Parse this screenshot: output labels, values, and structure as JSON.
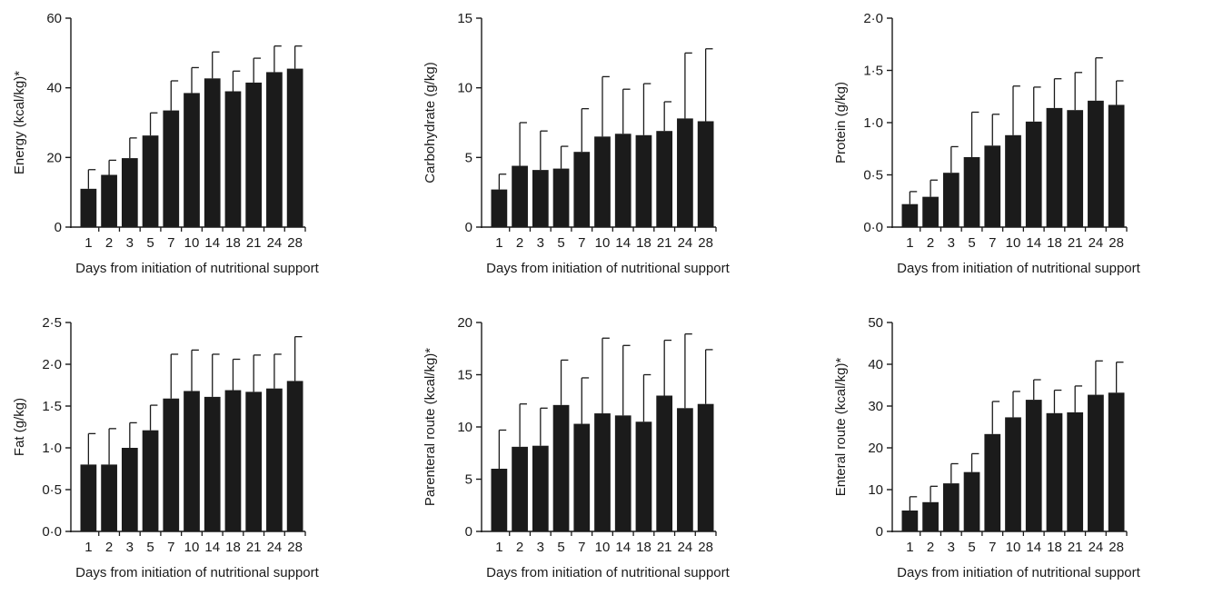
{
  "colors": {
    "bar": "#1b1b1b",
    "axis": "#1b1b1b",
    "text": "#1a1a1a"
  },
  "chart_data": [
    {
      "type": "bar",
      "categories": [
        "1",
        "2",
        "3",
        "5",
        "7",
        "10",
        "14",
        "18",
        "21",
        "24",
        "28"
      ],
      "values": [
        11,
        15,
        19.8,
        26.3,
        33.5,
        38.5,
        42.7,
        39,
        41.5,
        44.5,
        45.5
      ],
      "errors": [
        5.5,
        4.2,
        5.8,
        6.5,
        8.5,
        7.3,
        7.6,
        5.8,
        7.0,
        7.5,
        6.5
      ],
      "ylabel": "Energy (kcal/kg)*",
      "xlabel": "Days from initiation of nutritional support",
      "ylim": [
        0,
        60
      ],
      "yticks": [
        0,
        20,
        40,
        60
      ],
      "ytick_labels": [
        "0",
        "20",
        "40",
        "60"
      ]
    },
    {
      "type": "bar",
      "categories": [
        "1",
        "2",
        "3",
        "5",
        "7",
        "10",
        "14",
        "18",
        "21",
        "24",
        "28"
      ],
      "values": [
        2.7,
        4.4,
        4.1,
        4.2,
        5.4,
        6.5,
        6.7,
        6.6,
        6.9,
        7.8,
        7.6
      ],
      "errors": [
        1.1,
        3.1,
        2.8,
        1.6,
        3.1,
        4.3,
        3.2,
        3.7,
        2.1,
        4.7,
        5.2
      ],
      "ylabel": "Carbohydrate (g/kg)",
      "xlabel": "Days from initiation of nutritional support",
      "ylim": [
        0,
        15
      ],
      "yticks": [
        0,
        5,
        10,
        15
      ],
      "ytick_labels": [
        "0",
        "5",
        "10",
        "15"
      ]
    },
    {
      "type": "bar",
      "categories": [
        "1",
        "2",
        "3",
        "5",
        "7",
        "10",
        "14",
        "18",
        "21",
        "24",
        "28"
      ],
      "values": [
        0.22,
        0.29,
        0.52,
        0.67,
        0.78,
        0.88,
        1.01,
        1.14,
        1.12,
        1.21,
        1.17
      ],
      "errors": [
        0.12,
        0.16,
        0.25,
        0.43,
        0.3,
        0.47,
        0.33,
        0.28,
        0.36,
        0.41,
        0.23
      ],
      "ylabel": "Protein (g/kg)",
      "xlabel": "Days from initiation of nutritional support",
      "ylim": [
        0,
        2
      ],
      "yticks": [
        0,
        0.5,
        1,
        1.5,
        2
      ],
      "ytick_labels": [
        "0·0",
        "0·5",
        "1·0",
        "1·5",
        "2·0"
      ]
    },
    {
      "type": "bar",
      "categories": [
        "1",
        "2",
        "3",
        "5",
        "7",
        "10",
        "14",
        "18",
        "21",
        "24",
        "28"
      ],
      "values": [
        0.8,
        0.8,
        1.0,
        1.21,
        1.59,
        1.68,
        1.61,
        1.69,
        1.67,
        1.71,
        1.8
      ],
      "errors": [
        0.37,
        0.43,
        0.3,
        0.3,
        0.53,
        0.49,
        0.51,
        0.37,
        0.44,
        0.41,
        0.53
      ],
      "ylabel": "Fat (g/kg)",
      "xlabel": "Days from initiation of nutritional support",
      "ylim": [
        0,
        2.5
      ],
      "yticks": [
        0,
        0.5,
        1,
        1.5,
        2,
        2.5
      ],
      "ytick_labels": [
        "0·0",
        "0·5",
        "1·0",
        "1·5",
        "2·0",
        "2·5"
      ]
    },
    {
      "type": "bar",
      "categories": [
        "1",
        "2",
        "3",
        "5",
        "7",
        "10",
        "14",
        "18",
        "21",
        "24",
        "28"
      ],
      "values": [
        6.0,
        8.1,
        8.2,
        12.1,
        10.3,
        11.3,
        11.1,
        10.5,
        13,
        11.8,
        12.2
      ],
      "errors": [
        3.7,
        4.1,
        3.6,
        4.3,
        4.4,
        7.2,
        6.7,
        4.5,
        5.3,
        7.1,
        5.2
      ],
      "ylabel": "Parenteral route (kcal/kg)*",
      "xlabel": "Days from initiation of nutritional support",
      "ylim": [
        0,
        20
      ],
      "yticks": [
        0,
        5,
        10,
        15,
        20
      ],
      "ytick_labels": [
        "0",
        "5",
        "10",
        "15",
        "20"
      ]
    },
    {
      "type": "bar",
      "categories": [
        "1",
        "2",
        "3",
        "5",
        "7",
        "10",
        "14",
        "18",
        "21",
        "24",
        "28"
      ],
      "values": [
        5.0,
        7.0,
        11.5,
        14.2,
        23.3,
        27.3,
        31.5,
        28.3,
        28.5,
        32.7,
        33.2
      ],
      "errors": [
        3.3,
        3.8,
        4.7,
        4.4,
        7.8,
        6.2,
        4.8,
        5.5,
        6.3,
        8.1,
        7.3
      ],
      "ylabel": "Enteral route (kcal/kg)*",
      "xlabel": "Days from initiation of nutritional support",
      "ylim": [
        0,
        50
      ],
      "yticks": [
        0,
        10,
        20,
        30,
        40,
        50
      ],
      "ytick_labels": [
        "0",
        "10",
        "20",
        "30",
        "40",
        "50"
      ]
    }
  ]
}
